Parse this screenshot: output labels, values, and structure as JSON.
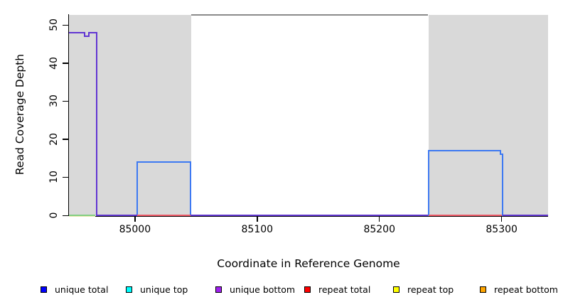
{
  "chart_data": {
    "type": "line",
    "subtype": "step-coverage-plot",
    "title": "",
    "xlabel": "Coordinate in Reference Genome",
    "ylabel": "Read Coverage Depth",
    "xlim": [
      84946,
      85338
    ],
    "ylim": [
      0,
      52.85
    ],
    "x_ticks": [
      85000,
      85100,
      85200,
      85300
    ],
    "y_ticks": [
      0,
      10,
      20,
      30,
      40,
      50
    ],
    "grid": false,
    "legend_position": "bottom",
    "background_color": "#FFFFFF",
    "repeat_region_color": "#D9D9D9",
    "repeat_regions": [
      {
        "x1": 84946,
        "x2": 85046
      },
      {
        "x1": 85240,
        "x2": 85338
      }
    ],
    "top_border": {
      "x1": 85046,
      "x2": 85240,
      "color": "#8A8A8A"
    },
    "series": [
      {
        "name": "unique total",
        "legend_color": "#0000FF",
        "plot_color": "#3D79F2",
        "segments": [
          {
            "type": "v",
            "x": 85002,
            "y1": 0,
            "y2": 14
          },
          {
            "type": "h",
            "x1": 85002,
            "x2": 85045.5,
            "y": 14
          },
          {
            "type": "v",
            "x": 85045.5,
            "y1": 0,
            "y2": 14
          },
          {
            "type": "v",
            "x": 85240,
            "y1": 0,
            "y2": 17
          },
          {
            "type": "h",
            "x1": 85240,
            "x2": 85299,
            "y": 17
          },
          {
            "type": "v",
            "x": 85299,
            "y1": 16,
            "y2": 17
          },
          {
            "type": "h",
            "x1": 85299,
            "x2": 85301,
            "y": 16
          },
          {
            "type": "v",
            "x": 85301,
            "y1": 0,
            "y2": 16
          }
        ]
      },
      {
        "name": "unique top",
        "legend_color": "#00FFFF",
        "plot_color": "#82CE82",
        "segments": [
          {
            "type": "h",
            "x1": 84946,
            "x2": 84967.5,
            "y": 0
          }
        ]
      },
      {
        "name": "unique bottom",
        "legend_color": "#A020F0",
        "plot_color": "#6236D2",
        "segments": [
          {
            "type": "h",
            "x1": 84946,
            "x2": 84958.8,
            "y": 48
          },
          {
            "type": "v",
            "x": 84958.8,
            "y1": 47,
            "y2": 48
          },
          {
            "type": "h",
            "x1": 84958.8,
            "x2": 84962.3,
            "y": 47
          },
          {
            "type": "v",
            "x": 84962.3,
            "y1": 47,
            "y2": 48
          },
          {
            "type": "h",
            "x1": 84962.3,
            "x2": 84968.7,
            "y": 48
          },
          {
            "type": "v",
            "x": 84968.7,
            "y1": 0,
            "y2": 48
          },
          {
            "type": "h",
            "x1": 84968.7,
            "x2": 85002,
            "y": 0
          },
          {
            "type": "h",
            "x1": 85045.5,
            "x2": 85240,
            "y": 0
          },
          {
            "type": "h",
            "x1": 85301,
            "x2": 85338,
            "y": 0
          }
        ]
      },
      {
        "name": "repeat total",
        "legend_color": "#FF0000",
        "plot_color": "#F25C6A",
        "segments": [
          {
            "type": "h",
            "x1": 85002,
            "x2": 85045.5,
            "y": 0
          },
          {
            "type": "h",
            "x1": 85240,
            "x2": 85300,
            "y": 0
          }
        ]
      },
      {
        "name": "repeat top",
        "legend_color": "#FFFF00",
        "plot_color": "#F0ECB4",
        "segments": [
          {
            "type": "h",
            "x1": 84946,
            "x2": 84967.5,
            "y": 0,
            "dy": 1.8,
            "thin": true
          }
        ]
      },
      {
        "name": "repeat bottom",
        "legend_color": "#FFA500",
        "plot_color": "#FFA500",
        "segments": []
      }
    ],
    "legend_items": [
      {
        "label": "unique total",
        "color": "#0000FF"
      },
      {
        "label": "unique top",
        "color": "#00FFFF"
      },
      {
        "label": "unique bottom",
        "color": "#A020F0"
      },
      {
        "label": "repeat total",
        "color": "#FF0000"
      },
      {
        "label": "repeat top",
        "color": "#FFFF00"
      },
      {
        "label": "repeat bottom",
        "color": "#FFA500"
      }
    ]
  }
}
